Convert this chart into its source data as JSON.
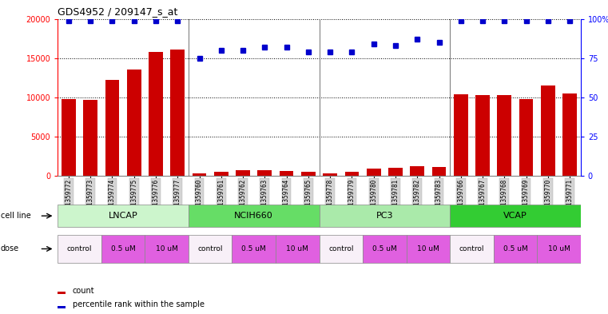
{
  "title": "GDS4952 / 209147_s_at",
  "samples": [
    "GSM1359772",
    "GSM1359773",
    "GSM1359774",
    "GSM1359775",
    "GSM1359776",
    "GSM1359777",
    "GSM1359760",
    "GSM1359761",
    "GSM1359762",
    "GSM1359763",
    "GSM1359764",
    "GSM1359765",
    "GSM1359778",
    "GSM1359779",
    "GSM1359780",
    "GSM1359781",
    "GSM1359782",
    "GSM1359783",
    "GSM1359766",
    "GSM1359767",
    "GSM1359768",
    "GSM1359769",
    "GSM1359770",
    "GSM1359771"
  ],
  "counts": [
    9800,
    9700,
    12200,
    13500,
    15800,
    16100,
    300,
    500,
    700,
    700,
    600,
    500,
    300,
    500,
    900,
    1000,
    1200,
    1150,
    10400,
    10300,
    10300,
    9800,
    11500,
    10500
  ],
  "percentile_ranks": [
    99,
    99,
    99,
    99,
    99,
    99,
    75,
    80,
    80,
    82,
    82,
    79,
    79,
    79,
    84,
    83,
    87,
    85,
    99,
    99,
    99,
    99,
    99,
    99
  ],
  "cell_lines": [
    {
      "name": "LNCAP",
      "start": 0,
      "end": 6,
      "color": "#ccf5cc"
    },
    {
      "name": "NCIH660",
      "start": 6,
      "end": 12,
      "color": "#66dd66"
    },
    {
      "name": "PC3",
      "start": 12,
      "end": 18,
      "color": "#aaeaaa"
    },
    {
      "name": "VCAP",
      "start": 18,
      "end": 24,
      "color": "#33cc33"
    }
  ],
  "dose_labels_per_group": [
    "control",
    "0.5 uM",
    "10 uM"
  ],
  "dose_colors": {
    "control": "#f8f0f8",
    "0.5 uM": "#e060e0",
    "10 uM": "#e060e0"
  },
  "dose_text_colors": {
    "control": "#000000",
    "0.5 uM": "#000000",
    "10 uM": "#000000"
  },
  "bar_color": "#cc0000",
  "dot_color": "#0000cc",
  "ylim_left": [
    0,
    20000
  ],
  "ylim_right": [
    0,
    100
  ],
  "yticks_left": [
    0,
    5000,
    10000,
    15000,
    20000
  ],
  "yticks_right": [
    0,
    25,
    50,
    75,
    100
  ],
  "ytick_labels_right": [
    "0",
    "25",
    "50",
    "75",
    "100%"
  ],
  "grid_values": [
    5000,
    10000,
    15000,
    20000
  ],
  "background_color": "#ffffff",
  "xticklabel_bg": "#d8d8d8",
  "legend_count_color": "#cc0000",
  "legend_dot_color": "#0000cc"
}
